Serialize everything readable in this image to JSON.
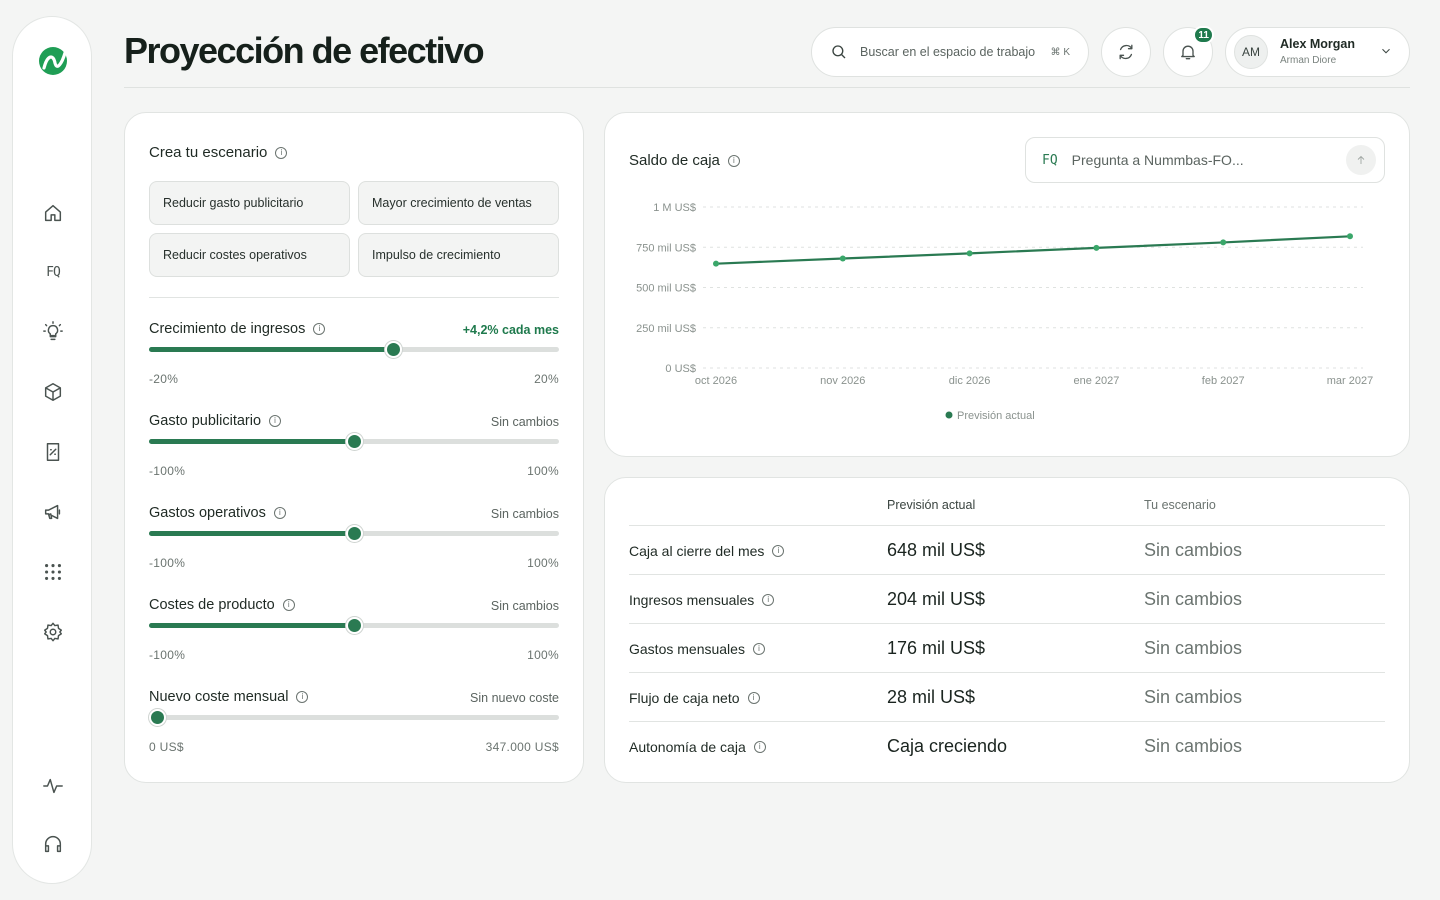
{
  "colors": {
    "accent": "#2a7a52",
    "brand_logo": "#1f9e55",
    "background": "#f4f5f4"
  },
  "sidebar": {
    "logo": "app-logo",
    "items": [
      {
        "icon": "home-icon"
      },
      {
        "icon": "fq-icon",
        "text": "FQ"
      },
      {
        "icon": "lightbulb-icon"
      },
      {
        "icon": "box-icon"
      },
      {
        "icon": "report-icon"
      },
      {
        "icon": "megaphone-icon"
      },
      {
        "icon": "apps-grid-icon"
      },
      {
        "icon": "gear-icon"
      },
      {
        "icon": "activity-icon"
      },
      {
        "icon": "headset-icon"
      }
    ]
  },
  "header": {
    "title": "Proyección de efectivo",
    "search": {
      "placeholder": "Buscar en el espacio de trabajo",
      "shortcut": "⌘ K"
    },
    "notifications_count": "11",
    "user": {
      "initials": "AM",
      "name": "Alex Morgan",
      "subtitle": "Arman Diore"
    }
  },
  "scenario": {
    "title": "Crea tu escenario",
    "chips": [
      "Reducir gasto publicitario",
      "Mayor crecimiento de ventas",
      "Reducir costes operativos",
      "Impulso de crecimiento"
    ],
    "sliders": [
      {
        "label": "Crecimiento de ingresos",
        "value": "+4,2% cada mes",
        "min": "-20%",
        "max": "20%",
        "position": 0.595,
        "positive": true
      },
      {
        "label": "Gasto publicitario",
        "value": "Sin cambios",
        "min": "-100%",
        "max": "100%",
        "position": 0.5
      },
      {
        "label": "Gastos operativos",
        "value": "Sin cambios",
        "min": "-100%",
        "max": "100%",
        "position": 0.5
      },
      {
        "label": "Costes de producto",
        "value": "Sin cambios",
        "min": "-100%",
        "max": "100%",
        "position": 0.5
      },
      {
        "label": "Nuevo coste mensual",
        "value": "Sin nuevo coste",
        "min": "0 US$",
        "max": "347.000 US$",
        "position": 0.02
      }
    ]
  },
  "cash_chart": {
    "title": "Saldo de caja",
    "ask_placeholder": "Pregunta a Nummbas-FO...",
    "ask_icon_text": "FQ"
  },
  "chart_data": {
    "type": "line",
    "title": "Saldo de caja",
    "categories": [
      "oct 2026",
      "nov 2026",
      "dic 2026",
      "ene 2027",
      "feb 2027",
      "mar 2027"
    ],
    "series": [
      {
        "name": "Previsión actual",
        "values": [
          648000,
          680000,
          712000,
          746000,
          780000,
          818000
        ],
        "color": "#2a7a52"
      }
    ],
    "y_ticks": [
      {
        "value": 0,
        "label": "0 US$"
      },
      {
        "value": 250000,
        "label": "250 mil US$"
      },
      {
        "value": 500000,
        "label": "500 mil US$"
      },
      {
        "value": 750000,
        "label": "750 mil US$"
      },
      {
        "value": 1000000,
        "label": "1 M US$"
      }
    ],
    "ylim": [
      0,
      1000000
    ],
    "grid": true,
    "legend": "bottom-center"
  },
  "summary_table": {
    "headers": [
      "Previsión actual",
      "Tu escenario"
    ],
    "rows": [
      {
        "label": "Caja al cierre del mes",
        "current": "648 mil US$",
        "scenario": "Sin cambios"
      },
      {
        "label": "Ingresos mensuales",
        "current": "204 mil US$",
        "scenario": "Sin cambios"
      },
      {
        "label": "Gastos mensuales",
        "current": "176 mil US$",
        "scenario": "Sin cambios"
      },
      {
        "label": "Flujo de caja neto",
        "current": "28 mil US$",
        "scenario": "Sin cambios"
      },
      {
        "label": "Autonomía de caja",
        "current": "Caja creciendo",
        "scenario": "Sin cambios"
      }
    ]
  }
}
